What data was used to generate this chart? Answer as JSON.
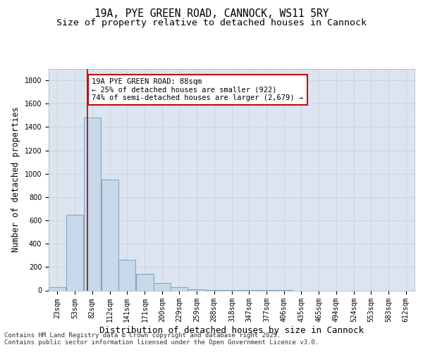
{
  "title_line1": "19A, PYE GREEN ROAD, CANNOCK, WS11 5RY",
  "title_line2": "Size of property relative to detached houses in Cannock",
  "xlabel": "Distribution of detached houses by size in Cannock",
  "ylabel": "Number of detached properties",
  "bins": [
    "23sqm",
    "53sqm",
    "82sqm",
    "112sqm",
    "141sqm",
    "171sqm",
    "200sqm",
    "229sqm",
    "259sqm",
    "288sqm",
    "318sqm",
    "347sqm",
    "377sqm",
    "406sqm",
    "435sqm",
    "465sqm",
    "494sqm",
    "524sqm",
    "553sqm",
    "583sqm",
    "612sqm"
  ],
  "bin_edges": [
    23,
    53,
    82,
    112,
    141,
    171,
    200,
    229,
    259,
    288,
    318,
    347,
    377,
    406,
    435,
    465,
    494,
    524,
    553,
    583,
    612
  ],
  "bin_width": 29,
  "values": [
    30,
    650,
    1480,
    950,
    260,
    140,
    65,
    30,
    10,
    5,
    2,
    1,
    1,
    1,
    0,
    0,
    0,
    0,
    0,
    0,
    0
  ],
  "bar_color": "#c8d8e8",
  "bar_edge_color": "#6699bb",
  "vline_x": 88,
  "vline_color": "#aa0000",
  "annotation_line1": "19A PYE GREEN ROAD: 88sqm",
  "annotation_line2": "← 25% of detached houses are smaller (922)",
  "annotation_line3": "74% of semi-detached houses are larger (2,679) →",
  "annotation_box_color": "white",
  "annotation_box_edge": "#cc0000",
  "ylim": [
    0,
    1900
  ],
  "yticks": [
    0,
    200,
    400,
    600,
    800,
    1000,
    1200,
    1400,
    1600,
    1800
  ],
  "grid_color": "#c8d0dc",
  "bg_color": "#dce4f0",
  "footer_line1": "Contains HM Land Registry data © Crown copyright and database right 2025.",
  "footer_line2": "Contains public sector information licensed under the Open Government Licence v3.0.",
  "title_fontsize": 10.5,
  "subtitle_fontsize": 9.5,
  "ylabel_fontsize": 8.5,
  "xlabel_fontsize": 9,
  "tick_fontsize": 7,
  "annotation_fontsize": 7.5,
  "footer_fontsize": 6.5
}
